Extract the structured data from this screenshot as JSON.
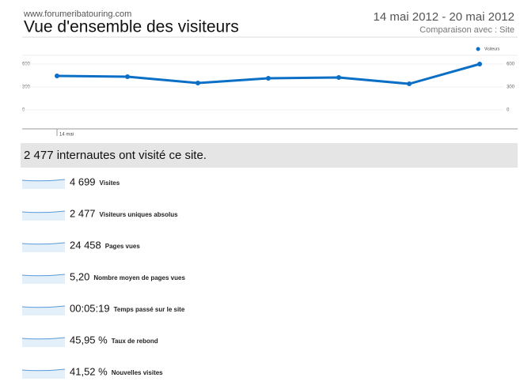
{
  "header": {
    "site": "www.forumeribatouring.com",
    "title": "Vue d'ensemble des visiteurs",
    "date_range": "14 mai 2012 - 20 mai 2012",
    "comparison": "Comparaison avec : Site"
  },
  "chart_data": {
    "type": "line",
    "categories": [
      "14 mai",
      null,
      null,
      null,
      null,
      null,
      null
    ],
    "series": [
      {
        "name": "Visiteurs",
        "color": "#0b6fc5",
        "values": [
          445,
          434,
          352,
          414,
          424,
          341,
          600
        ]
      }
    ],
    "ylim": [
      0,
      600
    ],
    "yticks": [
      0,
      300,
      600
    ],
    "grid": true,
    "legend": "top-right"
  },
  "summary": "2 477 internautes ont visité ce site.",
  "metrics": [
    {
      "value": "4 699",
      "label": "Visites"
    },
    {
      "value": "2 477",
      "label": "Visiteurs uniques absolus"
    },
    {
      "value": "24 458",
      "label": "Pages vues"
    },
    {
      "value": "5,20",
      "label": "Nombre moyen de pages vues"
    },
    {
      "value": "00:05:19",
      "label": "Temps passé sur le site"
    },
    {
      "value": "45,95 %",
      "label": "Taux de rebond"
    },
    {
      "value": "41,52 %",
      "label": "Nouvelles visites"
    }
  ]
}
